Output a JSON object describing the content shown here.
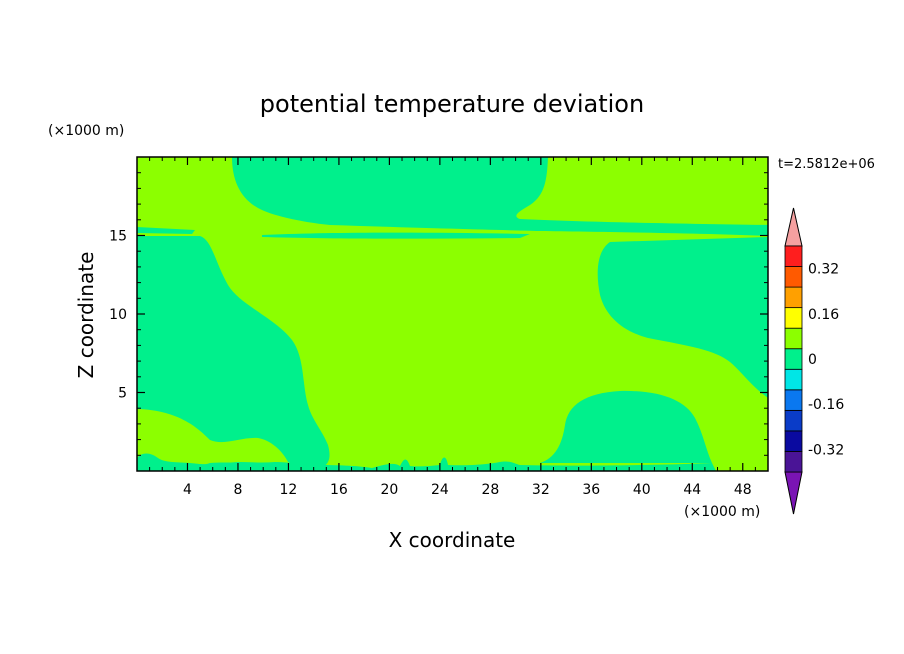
{
  "chart_data": {
    "type": "heatmap",
    "subtype": "filled-contour",
    "title": "potential temperature deviation",
    "xlabel": "X coordinate",
    "ylabel": "Z coordinate",
    "x_unit": "(×1000 m)",
    "y_unit": "(×1000 m)",
    "time_label": "t=2.5812e+06",
    "xlim": [
      0,
      50
    ],
    "ylim": [
      0,
      20
    ],
    "x_ticks": [
      4,
      8,
      12,
      16,
      20,
      24,
      28,
      32,
      36,
      40,
      44,
      48
    ],
    "y_ticks": [
      5,
      10,
      15
    ],
    "grid": false,
    "colorbar": {
      "position": "right",
      "extend": "both",
      "levels": [
        -0.4,
        -0.32,
        -0.24,
        -0.16,
        -0.08,
        0,
        0.08,
        0.16,
        0.24,
        0.32,
        0.4
      ],
      "tick_labels": [
        "-0.32",
        "-0.16",
        "0",
        "0.16",
        "0.32"
      ],
      "colors": [
        "#4a1496",
        "#0a0aa0",
        "#0a3cc8",
        "#0a78f0",
        "#00e6e6",
        "#00f08c",
        "#8cff00",
        "#ffff00",
        "#ffa000",
        "#ff5a00",
        "#ff1e1e"
      ],
      "under_color": "#7a14b4",
      "over_color": "#f5a0a0"
    },
    "regions": [
      {
        "name": "background",
        "range": [
          0,
          0.08
        ],
        "color": "#8cff00"
      },
      {
        "name": "upper-band",
        "range": [
          -0.08,
          0
        ],
        "color": "#00f08c"
      },
      {
        "name": "left-column",
        "range": [
          -0.08,
          0
        ],
        "color": "#00f08c"
      },
      {
        "name": "right-upper",
        "range": [
          -0.08,
          0
        ],
        "color": "#00f08c"
      },
      {
        "name": "right-lower",
        "range": [
          -0.08,
          0
        ],
        "color": "#00f08c"
      },
      {
        "name": "bottom-strip",
        "range": [
          -0.08,
          0
        ],
        "color": "#00f08c"
      }
    ]
  }
}
